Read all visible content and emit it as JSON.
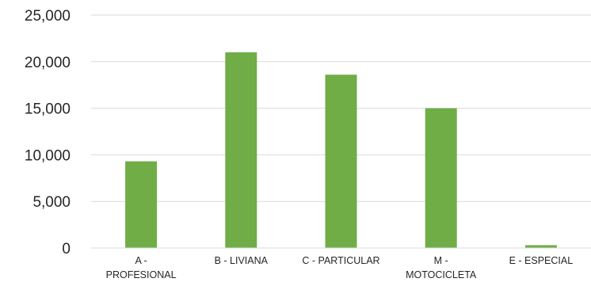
{
  "chart_data": {
    "type": "bar",
    "categories": [
      [
        "A -",
        "PROFESIONAL"
      ],
      [
        "B - LIVIANA"
      ],
      [
        "C - PARTICULAR"
      ],
      [
        "M -",
        "MOTOCICLETA"
      ],
      [
        "E - ESPECIAL"
      ]
    ],
    "values": [
      9300,
      21000,
      18600,
      15000,
      300
    ],
    "ylim": [
      0,
      25000
    ],
    "yticks": [
      0,
      5000,
      10000,
      15000,
      20000,
      25000
    ],
    "ytick_labels": [
      "0",
      "5,000",
      "10,000",
      "15,000",
      "20,000",
      "25,000"
    ],
    "grid": true,
    "colors": {
      "bar": "#70ad47"
    }
  }
}
